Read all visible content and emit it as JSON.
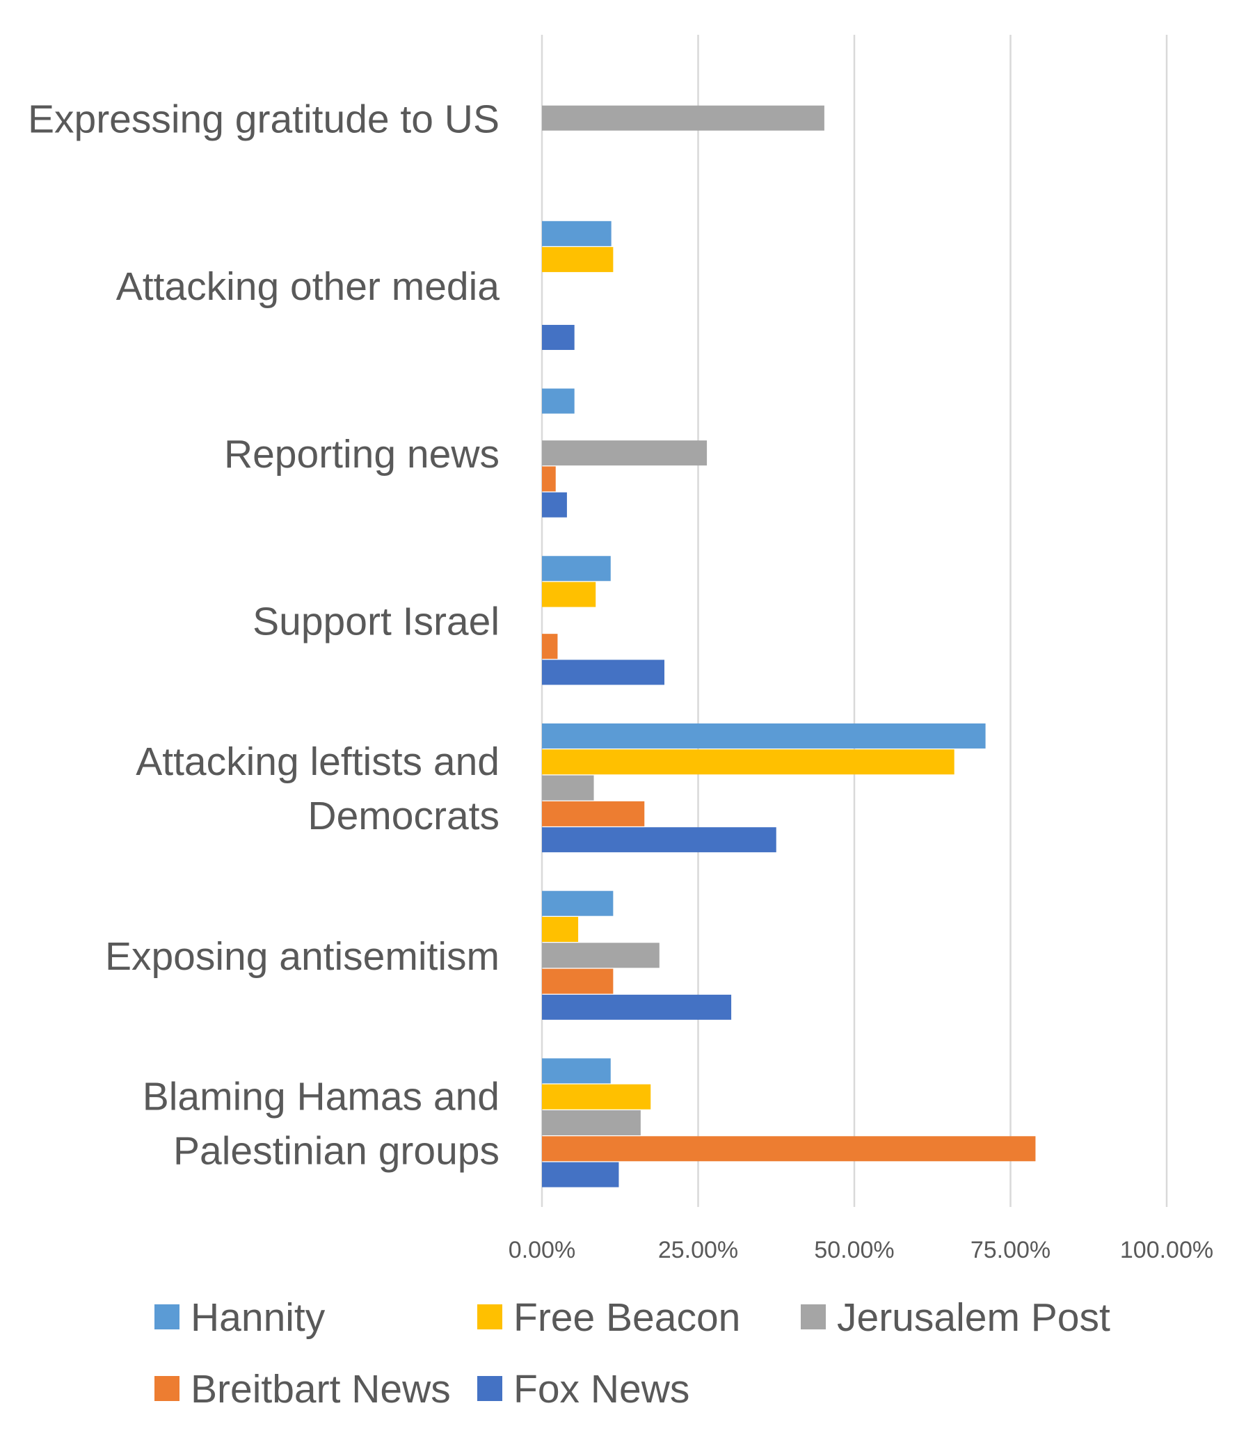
{
  "chart_data": {
    "type": "bar",
    "orientation": "horizontal",
    "title": "",
    "xlabel": "",
    "ylabel": "",
    "xlim": [
      0,
      1
    ],
    "x_ticks": [
      "0.00%",
      "25.00%",
      "50.00%",
      "75.00%",
      "100.00%"
    ],
    "grid": true,
    "legend_position": "bottom",
    "categories": [
      {
        "label": "Expressing gratitude to US",
        "lines": [
          "Expressing gratitude to US"
        ]
      },
      {
        "label": "Attacking other media",
        "lines": [
          "Attacking other media"
        ]
      },
      {
        "label": "Reporting news",
        "lines": [
          "Reporting news"
        ]
      },
      {
        "label": "Support Israel",
        "lines": [
          "Support Israel"
        ]
      },
      {
        "label": "Attacking leftists and Democrats",
        "lines": [
          "Attacking leftists and",
          "Democrats"
        ]
      },
      {
        "label": "Exposing antisemitism",
        "lines": [
          "Exposing antisemitism"
        ]
      },
      {
        "label": "Blaming Hamas and Palestinian groups",
        "lines": [
          "Blaming Hamas and",
          "Palestinian groups"
        ]
      }
    ],
    "series": [
      {
        "name": "Hannity",
        "color": "#5b9bd5",
        "values": [
          0,
          0.111,
          0.052,
          0.11,
          0.71,
          0.114,
          0.11
        ]
      },
      {
        "name": "Free Beacon",
        "color": "#ffc000",
        "values": [
          0,
          0.114,
          0,
          0.086,
          0.66,
          0.058,
          0.174
        ]
      },
      {
        "name": "Jerusalem Post",
        "color": "#a5a5a5",
        "values": [
          0.452,
          0,
          0.264,
          0,
          0.083,
          0.188,
          0.158
        ]
      },
      {
        "name": "Breitbart News",
        "color": "#ed7d31",
        "values": [
          0,
          0,
          0.022,
          0.025,
          0.164,
          0.114,
          0.79
        ]
      },
      {
        "name": "Fox News",
        "color": "#4472c4",
        "values": [
          0,
          0.052,
          0.04,
          0.196,
          0.375,
          0.303,
          0.123
        ]
      }
    ]
  }
}
